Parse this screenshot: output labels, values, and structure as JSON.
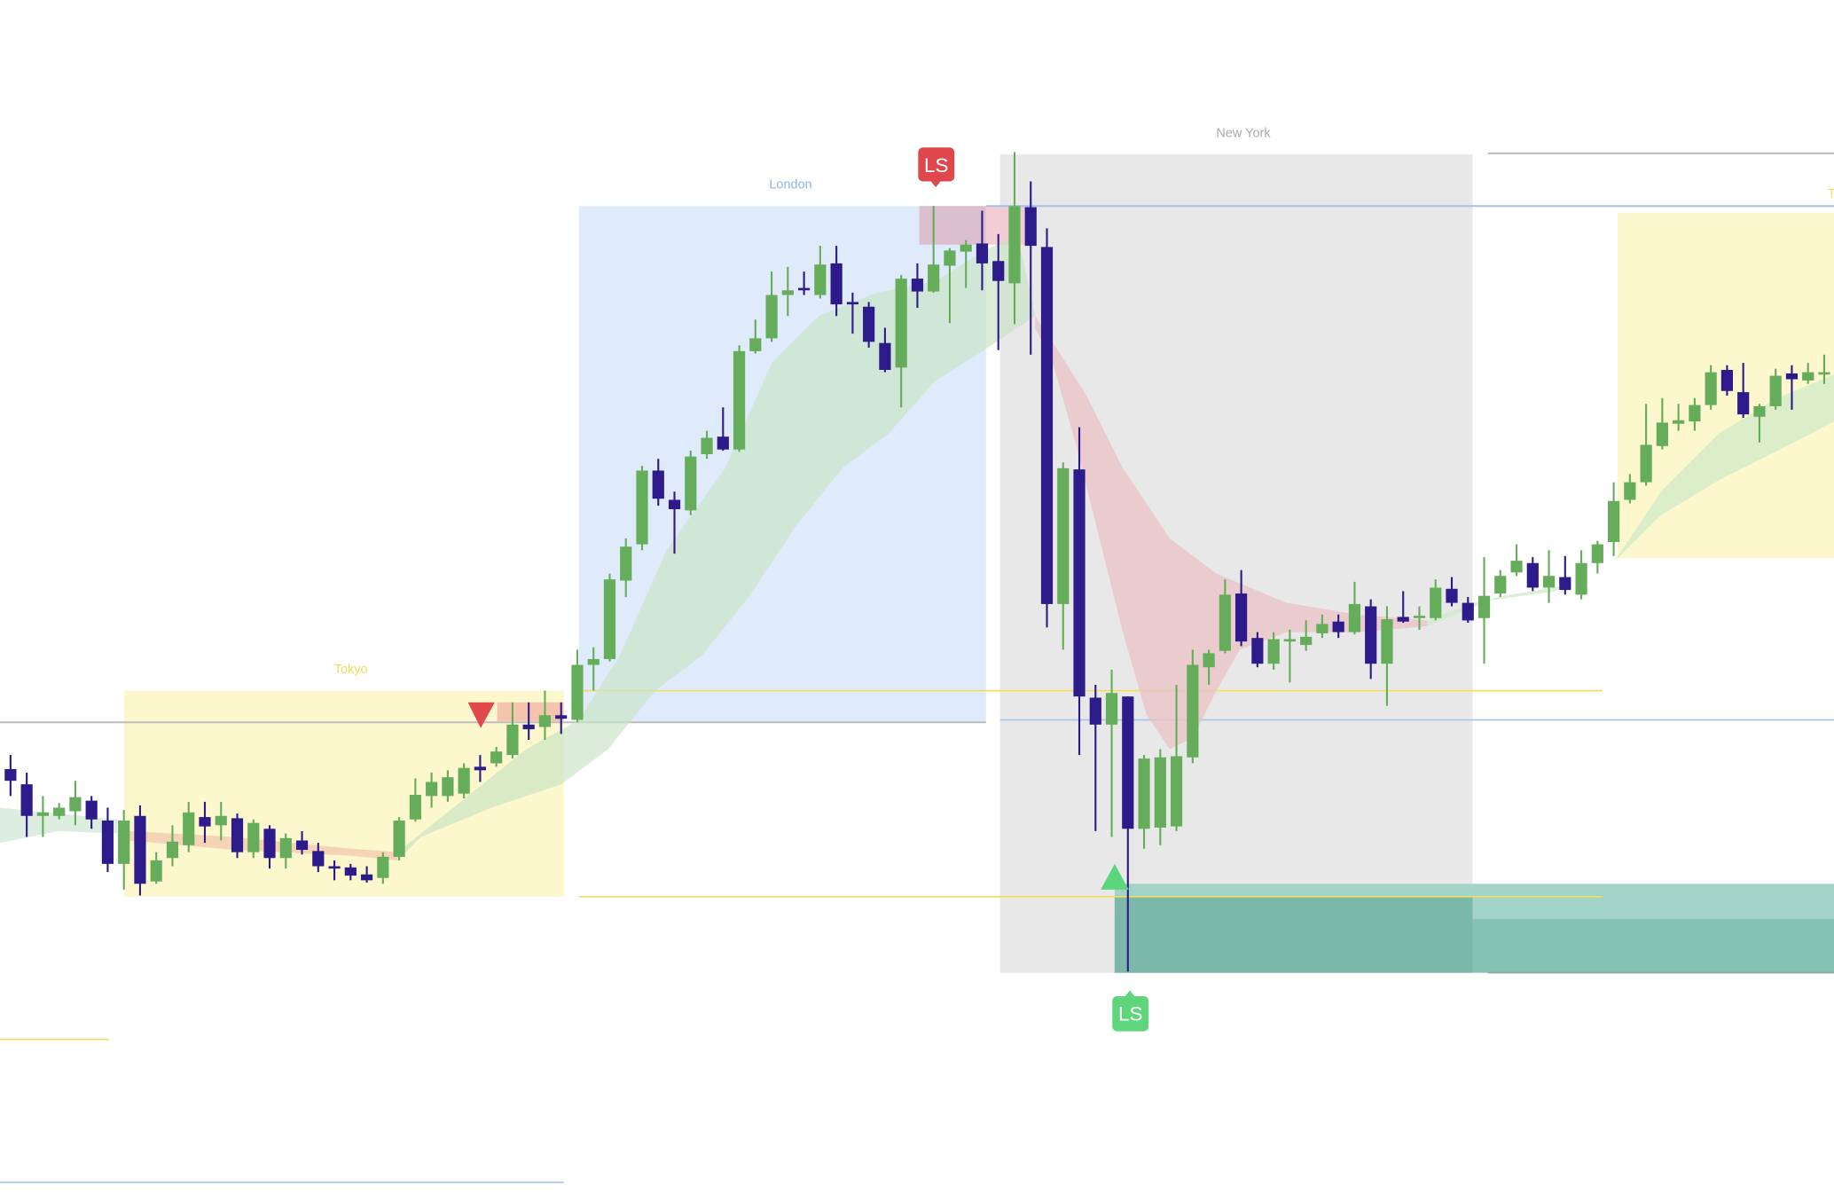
{
  "chart_data": {
    "type": "candlestick",
    "title": "",
    "xlabel": "",
    "ylabel": "",
    "grid": false,
    "legend": "none",
    "candle_format": [
      "open",
      "high",
      "low",
      "close"
    ],
    "candles": [
      [
        363,
        375,
        340,
        353
      ],
      [
        350,
        360,
        305,
        323
      ],
      [
        323,
        340,
        305,
        326
      ],
      [
        323,
        334,
        320,
        330
      ],
      [
        327,
        353,
        315,
        339
      ],
      [
        336,
        340,
        312,
        320
      ],
      [
        319,
        330,
        275,
        282
      ],
      [
        282,
        328,
        260,
        319
      ],
      [
        323,
        332,
        255,
        265
      ],
      [
        267,
        292,
        265,
        285
      ],
      [
        287,
        315,
        280,
        301
      ],
      [
        298,
        335,
        292,
        326
      ],
      [
        322,
        335,
        300,
        314
      ],
      [
        315,
        335,
        302,
        323
      ],
      [
        321,
        325,
        287,
        292
      ],
      [
        292,
        320,
        287,
        317
      ],
      [
        312,
        315,
        278,
        287
      ],
      [
        287,
        308,
        278,
        304
      ],
      [
        302,
        310,
        290,
        294
      ],
      [
        293,
        300,
        275,
        280
      ],
      [
        280,
        285,
        268,
        278
      ],
      [
        279,
        282,
        268,
        272
      ],
      [
        273,
        280,
        266,
        268
      ],
      [
        270,
        292,
        265,
        288
      ],
      [
        288,
        322,
        285,
        319
      ],
      [
        320,
        355,
        318,
        341
      ],
      [
        340,
        360,
        330,
        352
      ],
      [
        340,
        362,
        335,
        356
      ],
      [
        342,
        368,
        338,
        364
      ],
      [
        365,
        375,
        352,
        362
      ],
      [
        368,
        382,
        365,
        378
      ],
      [
        375,
        420,
        372,
        401
      ],
      [
        401,
        420,
        388,
        397
      ],
      [
        399,
        430,
        388,
        409
      ],
      [
        409,
        420,
        393,
        406
      ],
      [
        405,
        465,
        403,
        452
      ],
      [
        452,
        467,
        430,
        457
      ],
      [
        457,
        530,
        455,
        525
      ],
      [
        524,
        560,
        510,
        553
      ],
      [
        555,
        622,
        550,
        618
      ],
      [
        618,
        628,
        588,
        594
      ],
      [
        593,
        600,
        547,
        585
      ],
      [
        584,
        635,
        580,
        630
      ],
      [
        632,
        652,
        628,
        646
      ],
      [
        647,
        672,
        635,
        636
      ],
      [
        636,
        725,
        634,
        720
      ],
      [
        720,
        747,
        718,
        731
      ],
      [
        731,
        788,
        728,
        768
      ],
      [
        768,
        792,
        750,
        772
      ],
      [
        774,
        788,
        768,
        772
      ],
      [
        768,
        810,
        765,
        794
      ],
      [
        795,
        810,
        750,
        760
      ],
      [
        762,
        770,
        735,
        760
      ],
      [
        758,
        762,
        723,
        728
      ],
      [
        727,
        740,
        702,
        704
      ],
      [
        706,
        785,
        672,
        782
      ],
      [
        782,
        795,
        757,
        771
      ],
      [
        771,
        844,
        770,
        794
      ],
      [
        793,
        808,
        744,
        806
      ],
      [
        805,
        815,
        774,
        811
      ],
      [
        812,
        840,
        772,
        795
      ],
      [
        797,
        820,
        721,
        780
      ],
      [
        778,
        890,
        743,
        844
      ],
      [
        843,
        865,
        717,
        810
      ],
      [
        809,
        825,
        484,
        504
      ],
      [
        504,
        625,
        465,
        620
      ],
      [
        619,
        655,
        375,
        425
      ],
      [
        424,
        435,
        310,
        401
      ],
      [
        401,
        448,
        305,
        428
      ],
      [
        425,
        425,
        190,
        312
      ],
      [
        312,
        375,
        295,
        372
      ],
      [
        313,
        380,
        298,
        373
      ],
      [
        314,
        435,
        310,
        374
      ],
      [
        373,
        465,
        368,
        452
      ],
      [
        450,
        465,
        435,
        462
      ],
      [
        464,
        525,
        462,
        512
      ],
      [
        513,
        533,
        468,
        472
      ],
      [
        475,
        480,
        450,
        453
      ],
      [
        453,
        480,
        448,
        474
      ],
      [
        473,
        482,
        437,
        474
      ],
      [
        469,
        490,
        464,
        476
      ],
      [
        479,
        495,
        475,
        487
      ],
      [
        489,
        495,
        475,
        480
      ],
      [
        480,
        523,
        478,
        504
      ],
      [
        502,
        508,
        440,
        453
      ],
      [
        453,
        502,
        417,
        491
      ],
      [
        493,
        515,
        488,
        489
      ],
      [
        492,
        502,
        482,
        494
      ],
      [
        492,
        525,
        490,
        518
      ],
      [
        517,
        527,
        502,
        505
      ],
      [
        505,
        510,
        488,
        490
      ],
      [
        492,
        544,
        453,
        511
      ],
      [
        513,
        533,
        510,
        528
      ],
      [
        531,
        555,
        528,
        541
      ],
      [
        539,
        544,
        515,
        518
      ],
      [
        518,
        550,
        505,
        528
      ],
      [
        527,
        545,
        512,
        516
      ],
      [
        512,
        550,
        508,
        539
      ],
      [
        539,
        558,
        530,
        555
      ],
      [
        557,
        608,
        545,
        592
      ],
      [
        593,
        615,
        590,
        608
      ],
      [
        608,
        675,
        605,
        640
      ],
      [
        639,
        680,
        636,
        659
      ],
      [
        658,
        675,
        652,
        661
      ],
      [
        660,
        680,
        652,
        674
      ],
      [
        674,
        708,
        670,
        702
      ],
      [
        704,
        708,
        682,
        686
      ],
      [
        685,
        710,
        663,
        666
      ],
      [
        664,
        675,
        642,
        673
      ],
      [
        673,
        705,
        670,
        699
      ],
      [
        701,
        708,
        670,
        696
      ],
      [
        695,
        710,
        692,
        702
      ],
      [
        701,
        717,
        692,
        702
      ]
    ],
    "colors": {
      "bull": "#65ad5a",
      "bear": "#2d1a8b",
      "tokyo": "#f5dc5a",
      "london": "#8fb4ee",
      "new_york": "#aaaaaa",
      "signal_sell": "#e0474c",
      "signal_buy": "#5fd67c"
    }
  },
  "sessions": {
    "tokyo_label": "Tokyo",
    "london_label": "London",
    "new_york_label": "New York",
    "tokyo_next_label": "T"
  },
  "markers": {
    "sell_badge": "LS",
    "buy_badge": "LS"
  }
}
